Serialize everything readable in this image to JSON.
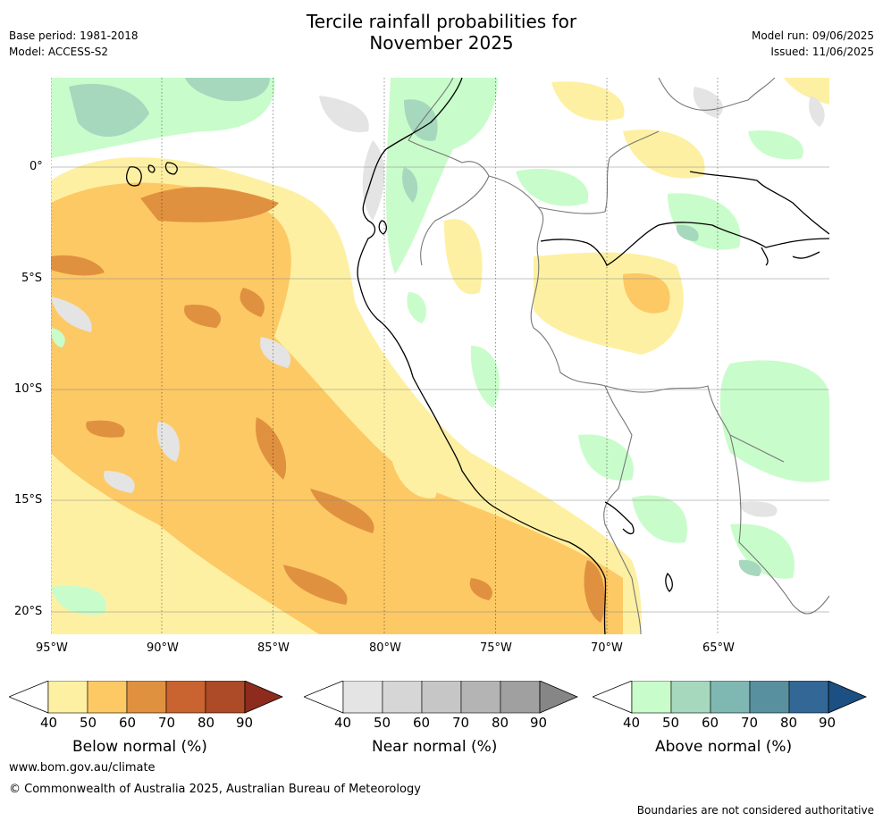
{
  "header": {
    "title_line1": "Tercile rainfall probabilities for",
    "title_line2": "November 2025",
    "base_period": "Base period: 1981-2018",
    "model": "Model: ACCESS-S2",
    "model_run": "Model run: 09/06/2025",
    "issued": "Issued: 11/06/2025"
  },
  "map": {
    "lat_labels": [
      "0°",
      "5°S",
      "10°S",
      "15°S",
      "20°S"
    ],
    "lon_labels": [
      "95°W",
      "90°W",
      "85°W",
      "80°W",
      "75°W",
      "70°W",
      "65°W"
    ]
  },
  "colorbars": [
    {
      "name": "below",
      "label": "Below normal (%)",
      "ticks": [
        "40",
        "50",
        "60",
        "70",
        "80",
        "90"
      ],
      "colors": [
        "#fef0a2",
        "#fdc965",
        "#e0913f",
        "#c9632f",
        "#ad4a27",
        "#8d2b1d"
      ]
    },
    {
      "name": "near",
      "label": "Near normal (%)",
      "ticks": [
        "40",
        "50",
        "60",
        "70",
        "80",
        "90"
      ],
      "colors": [
        "#e4e4e4",
        "#d6d6d6",
        "#c6c6c6",
        "#b4b4b4",
        "#a0a0a0",
        "#868686"
      ]
    },
    {
      "name": "above",
      "label": "Above normal (%)",
      "ticks": [
        "40",
        "50",
        "60",
        "70",
        "80",
        "90"
      ],
      "colors": [
        "#c9fccb",
        "#a6d8bd",
        "#7fb8b2",
        "#5890a0",
        "#336796",
        "#1c4f82"
      ]
    }
  ],
  "footer": {
    "url": "www.bom.gov.au/climate",
    "copyright": "© Commonwealth of Australia 2025, Australian Bureau of Meteorology",
    "disclaimer": "Boundaries are not considered authoritative"
  }
}
